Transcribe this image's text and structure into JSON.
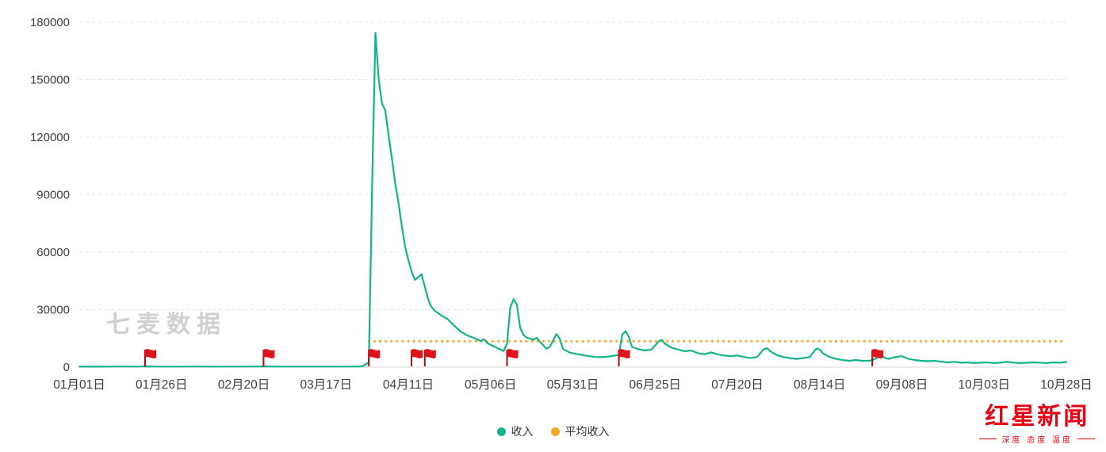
{
  "watermark": "七麦数据",
  "legend": {
    "income": "收入",
    "average": "平均收入"
  },
  "logo": {
    "title": "红星新闻",
    "tagline": "深度 态度 温度"
  },
  "colors": {
    "income_line": "#12b48b",
    "average_line": "#f6a623",
    "flag_red": "#e0121c",
    "flag_pole": "#a50d12",
    "grid": "#e4e4e4",
    "axis_text": "#3e3e3e",
    "watermark_gray": "#d0d0d0",
    "logo_red": "#e60012"
  },
  "chart_data": {
    "type": "line",
    "title": "",
    "xlabel": "",
    "ylabel": "",
    "ylim": [
      0,
      180000
    ],
    "y_ticks": [
      0,
      30000,
      60000,
      90000,
      120000,
      150000,
      180000
    ],
    "x_tick_days": [
      0,
      25,
      50,
      75,
      100,
      125,
      150,
      175,
      200,
      225,
      250,
      275,
      300
    ],
    "x_tick_labels": [
      "01月01日",
      "01月26日",
      "02月20日",
      "03月17日",
      "04月11日",
      "05月06日",
      "05月31日",
      "06月25日",
      "07月20日",
      "08月14日",
      "09月08日",
      "10月03日",
      "10月28日"
    ],
    "x_range_days": [
      0,
      300
    ],
    "grid": "dashed-horizontal",
    "legend_position": "bottom-center",
    "average_value": 13500,
    "average_start_day": 88,
    "flag_days": [
      20,
      56,
      88,
      101,
      105,
      130,
      164,
      241
    ],
    "series": [
      {
        "name": "收入",
        "color": "#12b48b",
        "style": "solid",
        "points": [
          [
            0,
            300
          ],
          [
            6,
            260
          ],
          [
            12,
            340
          ],
          [
            18,
            300
          ],
          [
            20,
            420
          ],
          [
            24,
            300
          ],
          [
            30,
            280
          ],
          [
            36,
            330
          ],
          [
            42,
            270
          ],
          [
            48,
            310
          ],
          [
            54,
            340
          ],
          [
            56,
            380
          ],
          [
            60,
            300
          ],
          [
            66,
            280
          ],
          [
            72,
            310
          ],
          [
            78,
            290
          ],
          [
            84,
            330
          ],
          [
            86,
            400
          ],
          [
            88,
            2500
          ],
          [
            89,
            95000
          ],
          [
            90,
            174500
          ],
          [
            91,
            150000
          ],
          [
            92,
            137500
          ],
          [
            93,
            134000
          ],
          [
            94,
            121000
          ],
          [
            95,
            109000
          ],
          [
            96,
            96000
          ],
          [
            97,
            86000
          ],
          [
            98,
            74000
          ],
          [
            99,
            63000
          ],
          [
            100,
            56000
          ],
          [
            101,
            50000
          ],
          [
            102,
            45500
          ],
          [
            103,
            47000
          ],
          [
            104,
            48500
          ],
          [
            105,
            42000
          ],
          [
            106,
            35500
          ],
          [
            107,
            31500
          ],
          [
            108,
            29500
          ],
          [
            110,
            27000
          ],
          [
            112,
            25000
          ],
          [
            114,
            21500
          ],
          [
            116,
            18500
          ],
          [
            118,
            16500
          ],
          [
            120,
            15200
          ],
          [
            122,
            13600
          ],
          [
            123,
            14600
          ],
          [
            124,
            12600
          ],
          [
            126,
            10800
          ],
          [
            128,
            9200
          ],
          [
            129,
            8400
          ],
          [
            130,
            12500
          ],
          [
            131,
            31000
          ],
          [
            132,
            35500
          ],
          [
            133,
            32500
          ],
          [
            134,
            20500
          ],
          [
            135,
            16800
          ],
          [
            136,
            15400
          ],
          [
            138,
            14300
          ],
          [
            139,
            15300
          ],
          [
            140,
            13300
          ],
          [
            142,
            9600
          ],
          [
            143,
            10600
          ],
          [
            145,
            17300
          ],
          [
            146,
            14900
          ],
          [
            147,
            9600
          ],
          [
            149,
            7600
          ],
          [
            151,
            6900
          ],
          [
            153,
            6300
          ],
          [
            155,
            5700
          ],
          [
            157,
            5300
          ],
          [
            159,
            5200
          ],
          [
            161,
            5600
          ],
          [
            163,
            6100
          ],
          [
            164,
            6400
          ],
          [
            165,
            17000
          ],
          [
            166,
            18800
          ],
          [
            167,
            15800
          ],
          [
            168,
            10600
          ],
          [
            170,
            9300
          ],
          [
            172,
            8700
          ],
          [
            174,
            9300
          ],
          [
            176,
            13300
          ],
          [
            177,
            14300
          ],
          [
            178,
            12200
          ],
          [
            180,
            10200
          ],
          [
            182,
            9200
          ],
          [
            184,
            8300
          ],
          [
            186,
            8700
          ],
          [
            188,
            7300
          ],
          [
            190,
            6700
          ],
          [
            192,
            7700
          ],
          [
            194,
            6700
          ],
          [
            196,
            6100
          ],
          [
            198,
            5700
          ],
          [
            200,
            6100
          ],
          [
            202,
            5300
          ],
          [
            204,
            4700
          ],
          [
            206,
            5300
          ],
          [
            208,
            9300
          ],
          [
            209,
            9900
          ],
          [
            210,
            8300
          ],
          [
            212,
            6300
          ],
          [
            214,
            5300
          ],
          [
            216,
            4700
          ],
          [
            218,
            4300
          ],
          [
            220,
            4700
          ],
          [
            222,
            5300
          ],
          [
            224,
            9700
          ],
          [
            225,
            9200
          ],
          [
            226,
            7300
          ],
          [
            228,
            5300
          ],
          [
            230,
            4300
          ],
          [
            232,
            3700
          ],
          [
            234,
            3300
          ],
          [
            236,
            3700
          ],
          [
            238,
            3300
          ],
          [
            240,
            3300
          ],
          [
            241,
            3700
          ],
          [
            243,
            5300
          ],
          [
            244,
            5700
          ],
          [
            245,
            4700
          ],
          [
            246,
            4300
          ],
          [
            248,
            5300
          ],
          [
            250,
            5700
          ],
          [
            252,
            4300
          ],
          [
            254,
            3700
          ],
          [
            256,
            3300
          ],
          [
            258,
            3100
          ],
          [
            260,
            3300
          ],
          [
            262,
            2800
          ],
          [
            264,
            2500
          ],
          [
            266,
            2800
          ],
          [
            268,
            2300
          ],
          [
            270,
            2500
          ],
          [
            272,
            2100
          ],
          [
            274,
            2300
          ],
          [
            276,
            2500
          ],
          [
            278,
            2100
          ],
          [
            280,
            2300
          ],
          [
            282,
            2800
          ],
          [
            284,
            2300
          ],
          [
            286,
            2100
          ],
          [
            288,
            2300
          ],
          [
            290,
            2500
          ],
          [
            292,
            2300
          ],
          [
            294,
            2100
          ],
          [
            296,
            2500
          ],
          [
            298,
            2300
          ],
          [
            300,
            2700
          ]
        ]
      },
      {
        "name": "平均收入",
        "color": "#f6a623",
        "style": "dotted",
        "value": 13500
      }
    ]
  }
}
